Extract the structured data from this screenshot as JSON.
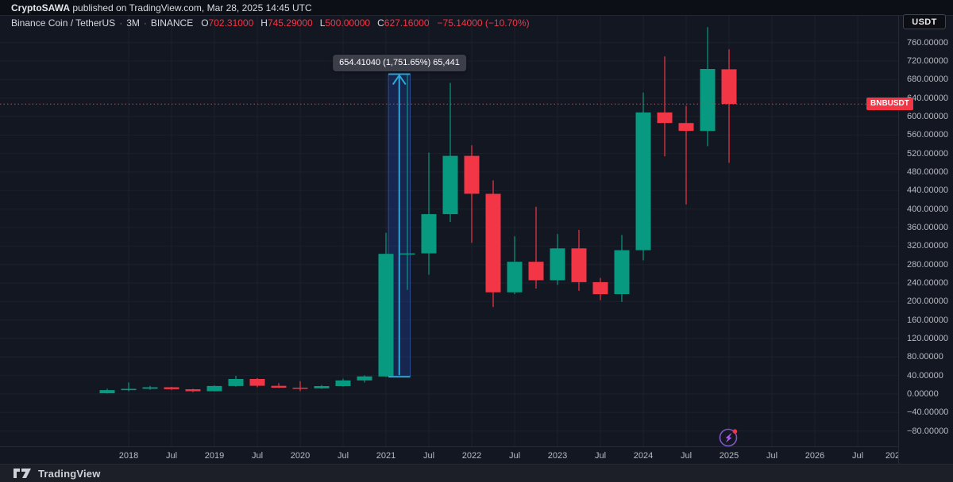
{
  "top_bar": {
    "author": "CryptoSAWA",
    "rest": " published on TradingView.com, Mar 28, 2025 14:45 UTC"
  },
  "header": {
    "currency_button": "USDT"
  },
  "legend": {
    "title": "Binance Coin / TetherUS",
    "separator": "·",
    "interval": "3M",
    "exchange": "BINANCE",
    "ohlc": [
      {
        "label": "O",
        "value": "702.31000"
      },
      {
        "label": "H",
        "value": "745.29000"
      },
      {
        "label": "L",
        "value": "500.00000"
      },
      {
        "label": "C",
        "value": "627.16000"
      }
    ],
    "change": "−75.14000 (−10.70%)"
  },
  "footer": {
    "brand": "TradingView"
  },
  "chart_data": {
    "type": "candlestick",
    "title": "Binance Coin / TetherUS · 3M · BINANCE",
    "symbol": "BNBUSDT",
    "interval": "3M",
    "up_color": "#089981",
    "down_color": "#f23645",
    "grid": true,
    "ylim": [
      -100,
      800
    ],
    "y_ticks": [
      {
        "price": 760,
        "label": "760.00000"
      },
      {
        "price": 720,
        "label": "720.00000"
      },
      {
        "price": 680,
        "label": "680.00000"
      },
      {
        "price": 640,
        "label": "640.00000"
      },
      {
        "price": 600,
        "label": "600.00000"
      },
      {
        "price": 560,
        "label": "560.00000"
      },
      {
        "price": 520,
        "label": "520.00000"
      },
      {
        "price": 480,
        "label": "480.00000"
      },
      {
        "price": 440,
        "label": "440.00000"
      },
      {
        "price": 400,
        "label": "400.00000"
      },
      {
        "price": 360,
        "label": "360.00000"
      },
      {
        "price": 320,
        "label": "320.00000"
      },
      {
        "price": 280,
        "label": "280.00000"
      },
      {
        "price": 240,
        "label": "240.00000"
      },
      {
        "price": 200,
        "label": "200.00000"
      },
      {
        "price": 160,
        "label": "160.00000"
      },
      {
        "price": 120,
        "label": "120.00000"
      },
      {
        "price": 80,
        "label": "80.00000"
      },
      {
        "price": 40,
        "label": "40.00000"
      },
      {
        "price": 0,
        "label": "0.00000"
      },
      {
        "price": -40,
        "label": "−40.00000"
      },
      {
        "price": -80,
        "label": "−80.00000"
      }
    ],
    "x_ticks": [
      "2018",
      "Jul",
      "2019",
      "Jul",
      "2020",
      "Jul",
      "2021",
      "Jul",
      "2022",
      "Jul",
      "2023",
      "Jul",
      "2024",
      "Jul",
      "2025",
      "Jul",
      "2026",
      "Jul",
      "202"
    ],
    "series": [
      {
        "t": "2017-Q4",
        "o": 1.5,
        "h": 11.5,
        "l": 1.2,
        "c": 8.4
      },
      {
        "t": "2018-Q1",
        "o": 8.4,
        "h": 25.0,
        "l": 5.9,
        "c": 11.2
      },
      {
        "t": "2018-Q2",
        "o": 11.2,
        "h": 17.5,
        "l": 9.2,
        "c": 14.5
      },
      {
        "t": "2018-Q3",
        "o": 14.5,
        "h": 15.2,
        "l": 8.8,
        "c": 10.3
      },
      {
        "t": "2018-Q4",
        "o": 10.3,
        "h": 11.2,
        "l": 4.2,
        "c": 6.0
      },
      {
        "t": "2019-Q1",
        "o": 6.0,
        "h": 18.6,
        "l": 5.6,
        "c": 17.3
      },
      {
        "t": "2019-Q2",
        "o": 17.3,
        "h": 39.5,
        "l": 16.2,
        "c": 32.5
      },
      {
        "t": "2019-Q3",
        "o": 32.5,
        "h": 34.5,
        "l": 14.8,
        "c": 17.7
      },
      {
        "t": "2019-Q4",
        "o": 17.7,
        "h": 23.3,
        "l": 12.7,
        "c": 13.7
      },
      {
        "t": "2020-Q1",
        "o": 13.7,
        "h": 27.7,
        "l": 6.3,
        "c": 12.3
      },
      {
        "t": "2020-Q2",
        "o": 12.3,
        "h": 19.5,
        "l": 11.2,
        "c": 17.2
      },
      {
        "t": "2020-Q3",
        "o": 17.2,
        "h": 33.0,
        "l": 16.3,
        "c": 29.3
      },
      {
        "t": "2020-Q4",
        "o": 29.3,
        "h": 40.5,
        "l": 24.8,
        "c": 38.0
      },
      {
        "t": "2021-Q1",
        "o": 38.0,
        "h": 348.7,
        "l": 37.0,
        "c": 303.2
      },
      {
        "t": "2021-Q2",
        "o": 303.2,
        "h": 691.8,
        "l": 225.2,
        "c": 304.1
      },
      {
        "t": "2021-Q3",
        "o": 304.1,
        "h": 522.0,
        "l": 258.0,
        "c": 389.0
      },
      {
        "t": "2021-Q4",
        "o": 389.0,
        "h": 673.0,
        "l": 372.0,
        "c": 515.0
      },
      {
        "t": "2022-Q1",
        "o": 515.0,
        "h": 538.0,
        "l": 327.0,
        "c": 433.0
      },
      {
        "t": "2022-Q2",
        "o": 433.0,
        "h": 462.0,
        "l": 188.0,
        "c": 220.0
      },
      {
        "t": "2022-Q3",
        "o": 220.0,
        "h": 341.0,
        "l": 216.0,
        "c": 286.0
      },
      {
        "t": "2022-Q4",
        "o": 286.0,
        "h": 405.0,
        "l": 228.0,
        "c": 246.0
      },
      {
        "t": "2023-Q1",
        "o": 246.0,
        "h": 346.0,
        "l": 236.0,
        "c": 315.0
      },
      {
        "t": "2023-Q2",
        "o": 315.0,
        "h": 355.0,
        "l": 223.0,
        "c": 242.0
      },
      {
        "t": "2023-Q3",
        "o": 242.0,
        "h": 251.0,
        "l": 203.0,
        "c": 216.0
      },
      {
        "t": "2023-Q4",
        "o": 216.0,
        "h": 344.0,
        "l": 199.0,
        "c": 311.0
      },
      {
        "t": "2024-Q1",
        "o": 311.0,
        "h": 652.0,
        "l": 289.0,
        "c": 609.0
      },
      {
        "t": "2024-Q2",
        "o": 609.0,
        "h": 730.0,
        "l": 514.0,
        "c": 586.0
      },
      {
        "t": "2024-Q3",
        "o": 586.0,
        "h": 623.0,
        "l": 410.0,
        "c": 569.0
      },
      {
        "t": "2024-Q4",
        "o": 569.0,
        "h": 793.4,
        "l": 536.0,
        "c": 703.0
      },
      {
        "t": "2025-Q1",
        "o": 702.31,
        "h": 745.29,
        "l": 500.0,
        "c": 627.16
      }
    ],
    "current_price": {
      "value": 627.16,
      "flag": "BNBUSDT",
      "color": "#f23645"
    },
    "measure": {
      "from_price": 37.4,
      "to_price": 691.8,
      "label": "654.41040 (1,751.65%) 65,441",
      "arrow_color": "#2ea6d9",
      "fill_color": "rgba(41,98,255,0.2)"
    }
  }
}
